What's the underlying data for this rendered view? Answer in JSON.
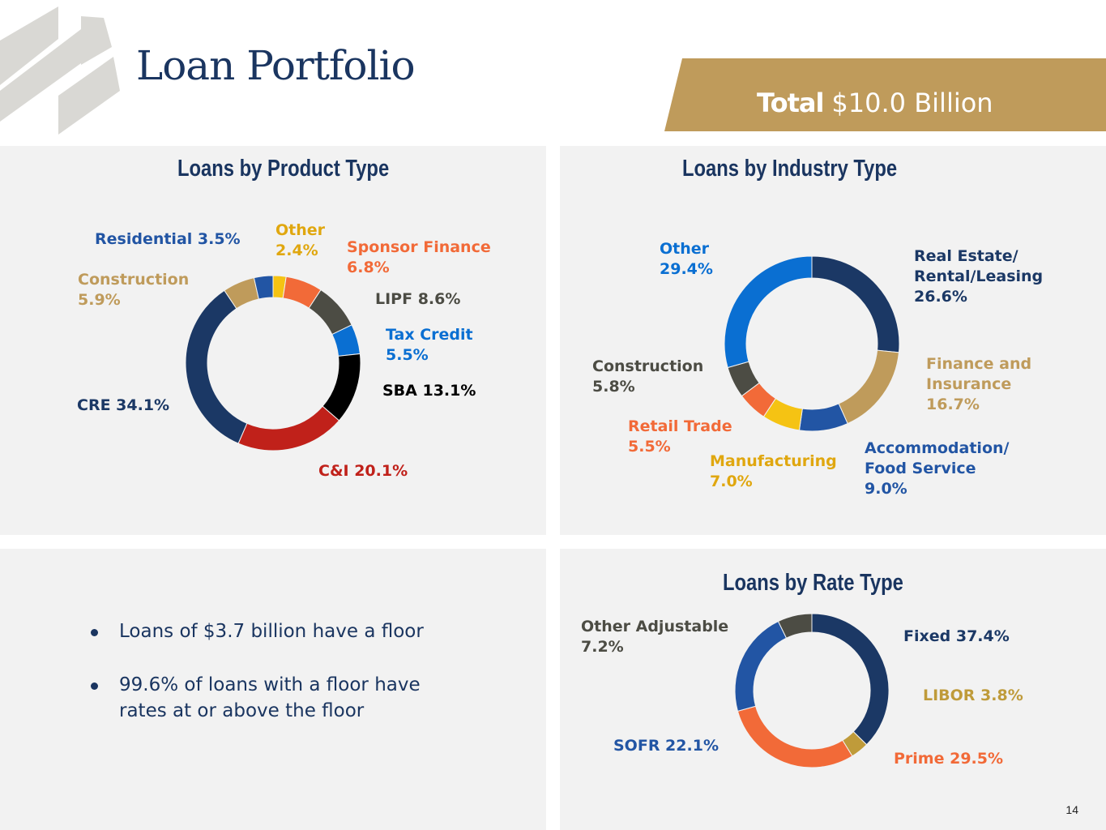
{
  "header": {
    "title": "Loan Portfolio",
    "total_label": "Total",
    "total_value": "$10.0 Billion",
    "banner_color": "#bf9b5b"
  },
  "bullets": [
    "Loans of $3.7 billion have a floor",
    "99.6% of loans with a floor have rates at or above the floor"
  ],
  "page_number": "14",
  "chart_data": [
    {
      "type": "pie",
      "title": "Loans by Product Type",
      "labels": [
        "Other",
        "Sponsor Finance",
        "LIPF",
        "Tax Credit",
        "SBA",
        "C&I",
        "CRE",
        "Construction",
        "Residential"
      ],
      "values": [
        2.4,
        6.8,
        8.6,
        5.5,
        13.1,
        20.1,
        34.1,
        5.9,
        3.5
      ],
      "colors": [
        "#f5c313",
        "#f26a38",
        "#4c4c44",
        "#0a6fd2",
        "#000000",
        "#c0211a",
        "#1b3865",
        "#bf9b5b",
        "#2255a4"
      ],
      "data_labels": [
        "Other\n2.4%",
        "Sponsor Finance\n6.8%",
        "LIPF 8.6%",
        "Tax Credit\n5.5%",
        "SBA 13.1%",
        "C&I 20.1%",
        "CRE 34.1%",
        "Construction\n5.9%",
        "Residential 3.5%"
      ],
      "label_colors": [
        "#e0a70f",
        "#f26a38",
        "#4c4c44",
        "#0a6fd2",
        "#000000",
        "#c0211a",
        "#1b3865",
        "#bf9b5b",
        "#2255a4"
      ]
    },
    {
      "type": "pie",
      "title": "Loans by Industry Type",
      "labels": [
        "Real Estate/ Rental/Leasing",
        "Finance and Insurance",
        "Accommodation/ Food Service",
        "Manufacturing",
        "Retail Trade",
        "Construction",
        "Other"
      ],
      "values": [
        26.6,
        16.7,
        9.0,
        7.0,
        5.5,
        5.8,
        29.4
      ],
      "colors": [
        "#1b3865",
        "#bf9b5b",
        "#2255a4",
        "#f5c313",
        "#f26a38",
        "#4c4c44",
        "#0a6fd2"
      ],
      "data_labels": [
        "Real Estate/\nRental/Leasing\n26.6%",
        "Finance and\nInsurance\n16.7%",
        "Accommodation/\nFood Service\n9.0%",
        "Manufacturing\n7.0%",
        "Retail Trade\n5.5%",
        "Construction\n5.8%",
        "Other\n29.4%"
      ],
      "label_colors": [
        "#1b3865",
        "#bf9b5b",
        "#2255a4",
        "#e0a70f",
        "#f26a38",
        "#4c4c44",
        "#0a6fd2"
      ]
    },
    {
      "type": "pie",
      "title": "Loans by Rate Type",
      "labels": [
        "Fixed",
        "LIBOR",
        "Prime",
        "SOFR",
        "Other Adjustable"
      ],
      "values": [
        37.4,
        3.8,
        29.5,
        22.1,
        7.2
      ],
      "colors": [
        "#1b3865",
        "#bf9b3a",
        "#f26a38",
        "#2255a4",
        "#4c4c44"
      ],
      "data_labels": [
        "Fixed 37.4%",
        "LIBOR 3.8%",
        "Prime 29.5%",
        "SOFR 22.1%",
        "Other Adjustable\n7.2%"
      ],
      "label_colors": [
        "#1b3865",
        "#bf9b3a",
        "#f26a38",
        "#2255a4",
        "#4c4c44"
      ]
    }
  ]
}
